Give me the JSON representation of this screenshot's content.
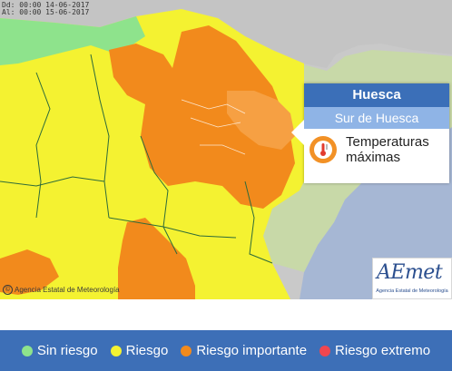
{
  "map": {
    "date_from": "Dd: 00:00 14-06-2017",
    "date_to": "Al: 00:00 15-06-2017",
    "copyright": "Agencia Estatal de Meteorología",
    "colors": {
      "no_risk": "#8ee38c",
      "risk": "#f4f231",
      "important": "#f28a1c",
      "extreme": "#f0464f",
      "popup_area": "#f6a043",
      "france": "#c4c4c4",
      "sea": "#9fb2d0",
      "inactive": "#c8c8c8"
    }
  },
  "popup": {
    "province": "Huesca",
    "zone": "Sur de Huesca",
    "phenomenon_line1": "Temperaturas",
    "phenomenon_line2": "máximas",
    "icon": "thermometer-icon"
  },
  "logo": {
    "brand": "AEmet",
    "tagline": "Agencia Estatal de Meteorología"
  },
  "legend": {
    "items": [
      {
        "label": "Sin riesgo",
        "color": "#8ee38c"
      },
      {
        "label": "Riesgo",
        "color": "#f4f231"
      },
      {
        "label": "Riesgo importante",
        "color": "#f28a1c"
      },
      {
        "label": "Riesgo extremo",
        "color": "#f0464f"
      }
    ]
  }
}
